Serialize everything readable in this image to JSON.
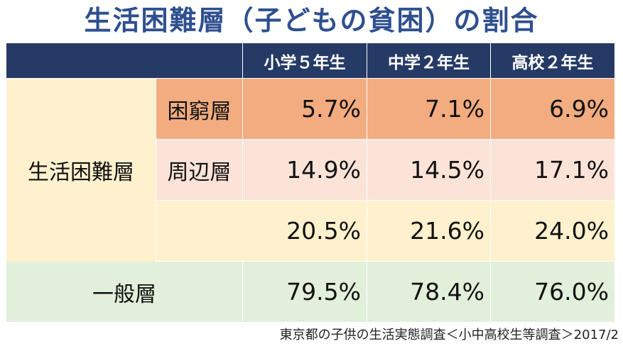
{
  "title": "生活困難層（子どもの貧困）の割合",
  "columns": [
    "小学５年生",
    "中学２年生",
    "高校２年生"
  ],
  "group_label": "生活困難層",
  "rows": [
    {
      "label": "困窮層",
      "values": [
        "5.7%",
        "7.1%",
        "6.9%"
      ]
    },
    {
      "label": "周辺層",
      "values": [
        "14.9%",
        "14.5%",
        "17.1%"
      ]
    },
    {
      "label": "",
      "values": [
        "20.5%",
        "21.6%",
        "24.0%"
      ]
    },
    {
      "label": "一般層",
      "values": [
        "79.5%",
        "78.4%",
        "76.0%"
      ]
    }
  ],
  "source": "東京都の子供の生活実態調査＜小中高校生等調査＞2017/2",
  "colors": {
    "title": "#2f4f8f",
    "header": "#263a66",
    "poverty": "#f2ac80",
    "periphery": "#fbe3d8",
    "total": "#fff1cd",
    "general": "#e2efda"
  }
}
